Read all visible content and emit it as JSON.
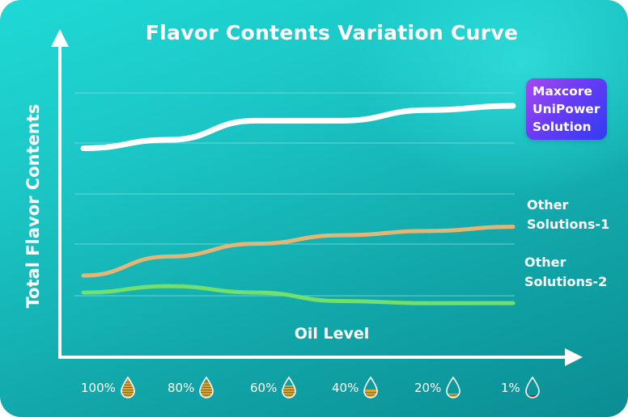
{
  "chart_data": {
    "type": "line",
    "title": "Flavor Contents Variation Curve",
    "xlabel": "Oil Level",
    "ylabel": "Total Flavor Contents",
    "categories": [
      "100%",
      "80%",
      "60%",
      "40%",
      "20%",
      "1%"
    ],
    "oil_fill_levels": [
      1.0,
      0.8,
      0.6,
      0.4,
      0.2,
      0.01
    ],
    "ylim": [
      0,
      6
    ],
    "grid": true,
    "series": [
      {
        "name_lines": [
          "Maxcore",
          "UniPower",
          "Solution"
        ],
        "values": [
          4.6,
          4.8,
          5.25,
          5.25,
          5.5,
          5.6
        ],
        "color": "#ffffff"
      },
      {
        "name_lines": [
          "Other",
          "Solutions-1"
        ],
        "values": [
          1.6,
          2.05,
          2.35,
          2.55,
          2.65,
          2.75
        ],
        "color": "#e4b676"
      },
      {
        "name_lines": [
          "Other",
          "Solutions-2"
        ],
        "values": [
          1.2,
          1.35,
          1.2,
          1.0,
          0.95,
          0.95
        ],
        "color": "#71e06c"
      }
    ]
  },
  "colors": {
    "background_start": "#1fd9d6",
    "background_end": "#0a8d93",
    "axis": "#ffffff",
    "grid": "#7fdcdc",
    "legend_badge": "#6a3bf5",
    "oil_gold": "#d9a936",
    "oil_stripe": "#7a5a1c",
    "oil_low_red": "#c21a1a"
  },
  "icons": {
    "y_axis_arrow": "arrow-up-icon",
    "x_axis_arrow": "arrow-right-icon",
    "oil_drop": "oil-drop-icon"
  }
}
